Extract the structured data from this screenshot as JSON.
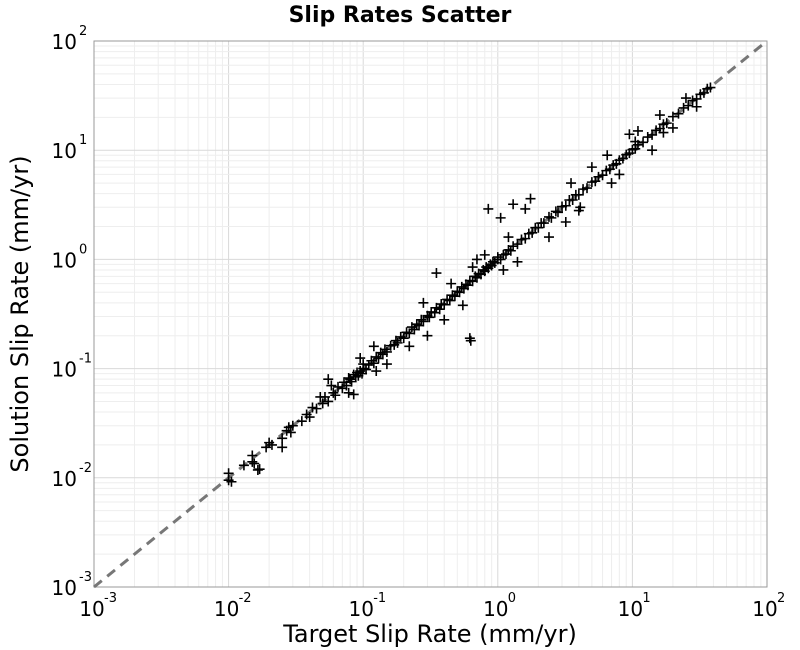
{
  "chart_data": {
    "type": "scatter",
    "title": "Slip Rates Scatter",
    "xlabel": "Target Slip Rate (mm/yr)",
    "ylabel": "Solution Slip Rate (mm/yr)",
    "xscale": "log",
    "yscale": "log",
    "xlim": [
      0.001,
      100
    ],
    "ylim": [
      0.001,
      100
    ],
    "xticks": [
      {
        "base": "10",
        "exp": "-3"
      },
      {
        "base": "10",
        "exp": "-2"
      },
      {
        "base": "10",
        "exp": "-1"
      },
      {
        "base": "10",
        "exp": "0"
      },
      {
        "base": "10",
        "exp": "1"
      },
      {
        "base": "10",
        "exp": "2"
      }
    ],
    "yticks": [
      {
        "base": "10",
        "exp": "-3"
      },
      {
        "base": "10",
        "exp": "-2"
      },
      {
        "base": "10",
        "exp": "-1"
      },
      {
        "base": "10",
        "exp": "0"
      },
      {
        "base": "10",
        "exp": "1"
      },
      {
        "base": "10",
        "exp": "2"
      }
    ],
    "grid": true,
    "marker": "plus",
    "marker_color": "#000000",
    "reference_line": {
      "style": "dashed",
      "color": "#777777",
      "from": [
        0.001,
        0.001
      ],
      "to": [
        100,
        100
      ]
    },
    "series": [
      {
        "points": [
          [
            0.01,
            0.0095
          ],
          [
            0.01,
            0.011
          ],
          [
            0.0105,
            0.0092
          ],
          [
            0.015,
            0.014
          ],
          [
            0.0155,
            0.0135
          ],
          [
            0.015,
            0.016
          ],
          [
            0.017,
            0.012
          ],
          [
            0.019,
            0.019
          ],
          [
            0.02,
            0.021
          ],
          [
            0.021,
            0.02
          ],
          [
            0.025,
            0.023
          ],
          [
            0.027,
            0.027
          ],
          [
            0.028,
            0.029
          ],
          [
            0.029,
            0.026
          ],
          [
            0.03,
            0.03
          ],
          [
            0.035,
            0.033
          ],
          [
            0.038,
            0.038
          ],
          [
            0.04,
            0.036
          ],
          [
            0.042,
            0.044
          ],
          [
            0.045,
            0.043
          ],
          [
            0.05,
            0.048
          ],
          [
            0.052,
            0.055
          ],
          [
            0.055,
            0.05
          ],
          [
            0.06,
            0.06
          ],
          [
            0.062,
            0.057
          ],
          [
            0.065,
            0.068
          ],
          [
            0.07,
            0.066
          ],
          [
            0.072,
            0.075
          ],
          [
            0.075,
            0.07
          ],
          [
            0.078,
            0.082
          ],
          [
            0.08,
            0.08
          ],
          [
            0.082,
            0.076
          ],
          [
            0.085,
            0.088
          ],
          [
            0.088,
            0.084
          ],
          [
            0.09,
            0.092
          ],
          [
            0.092,
            0.086
          ],
          [
            0.095,
            0.095
          ],
          [
            0.098,
            0.09
          ],
          [
            0.1,
            0.1
          ],
          [
            0.1,
            0.11
          ],
          [
            0.105,
            0.098
          ],
          [
            0.11,
            0.108
          ],
          [
            0.115,
            0.118
          ],
          [
            0.12,
            0.112
          ],
          [
            0.125,
            0.128
          ],
          [
            0.13,
            0.124
          ],
          [
            0.135,
            0.14
          ],
          [
            0.14,
            0.135
          ],
          [
            0.145,
            0.15
          ],
          [
            0.15,
            0.142
          ],
          [
            0.16,
            0.162
          ],
          [
            0.17,
            0.165
          ],
          [
            0.175,
            0.18
          ],
          [
            0.18,
            0.172
          ],
          [
            0.19,
            0.195
          ],
          [
            0.2,
            0.19
          ],
          [
            0.21,
            0.215
          ],
          [
            0.22,
            0.21
          ],
          [
            0.23,
            0.24
          ],
          [
            0.24,
            0.228
          ],
          [
            0.25,
            0.255
          ],
          [
            0.26,
            0.248
          ],
          [
            0.27,
            0.28
          ],
          [
            0.28,
            0.27
          ],
          [
            0.3,
            0.305
          ],
          [
            0.31,
            0.295
          ],
          [
            0.32,
            0.33
          ],
          [
            0.34,
            0.325
          ],
          [
            0.35,
            0.36
          ],
          [
            0.37,
            0.35
          ],
          [
            0.38,
            0.39
          ],
          [
            0.4,
            0.385
          ],
          [
            0.42,
            0.43
          ],
          [
            0.44,
            0.42
          ],
          [
            0.46,
            0.47
          ],
          [
            0.48,
            0.46
          ],
          [
            0.5,
            0.51
          ],
          [
            0.52,
            0.5
          ],
          [
            0.54,
            0.56
          ],
          [
            0.56,
            0.54
          ],
          [
            0.58,
            0.59
          ],
          [
            0.6,
            0.58
          ],
          [
            0.62,
            0.64
          ],
          [
            0.65,
            0.63
          ],
          [
            0.68,
            0.7
          ],
          [
            0.7,
            0.68
          ],
          [
            0.72,
            0.74
          ],
          [
            0.75,
            0.73
          ],
          [
            0.78,
            0.8
          ],
          [
            0.8,
            0.78
          ],
          [
            0.82,
            0.85
          ],
          [
            0.85,
            0.83
          ],
          [
            0.88,
            0.9
          ],
          [
            0.9,
            0.88
          ],
          [
            0.92,
            0.95
          ],
          [
            0.95,
            0.93
          ],
          [
            1.0,
            1.0
          ],
          [
            1.0,
            1.05
          ],
          [
            1.05,
            1.0
          ],
          [
            1.1,
            1.1
          ],
          [
            1.15,
            1.12
          ],
          [
            1.2,
            1.22
          ],
          [
            1.25,
            1.2
          ],
          [
            1.3,
            1.32
          ],
          [
            1.4,
            1.38
          ],
          [
            1.5,
            1.52
          ],
          [
            1.6,
            1.55
          ],
          [
            1.7,
            1.72
          ],
          [
            1.8,
            1.75
          ],
          [
            1.9,
            1.95
          ],
          [
            2.0,
            1.95
          ],
          [
            2.1,
            2.15
          ],
          [
            2.2,
            2.15
          ],
          [
            2.4,
            2.45
          ],
          [
            2.5,
            2.4
          ],
          [
            2.7,
            2.75
          ],
          [
            2.8,
            2.7
          ],
          [
            3.0,
            3.05
          ],
          [
            3.2,
            3.1
          ],
          [
            3.4,
            3.5
          ],
          [
            3.6,
            3.5
          ],
          [
            3.8,
            3.9
          ],
          [
            4.0,
            3.9
          ],
          [
            4.3,
            4.4
          ],
          [
            4.6,
            4.5
          ],
          [
            5.0,
            5.1
          ],
          [
            5.3,
            5.2
          ],
          [
            5.6,
            5.7
          ],
          [
            6.0,
            5.9
          ],
          [
            6.4,
            6.5
          ],
          [
            6.8,
            6.7
          ],
          [
            7.2,
            7.3
          ],
          [
            7.6,
            7.5
          ],
          [
            8.0,
            8.1
          ],
          [
            8.5,
            8.4
          ],
          [
            9.0,
            9.1
          ],
          [
            9.5,
            9.4
          ],
          [
            10.0,
            10.1
          ],
          [
            10.5,
            10.3
          ],
          [
            11.0,
            11.2
          ],
          [
            12.0,
            11.8
          ],
          [
            13.0,
            13.2
          ],
          [
            14.0,
            13.8
          ],
          [
            15.0,
            15.2
          ],
          [
            16.0,
            15.8
          ],
          [
            17.0,
            17.3
          ],
          [
            18.0,
            17.7
          ],
          [
            20.0,
            20.3
          ],
          [
            22.0,
            21.6
          ],
          [
            24.0,
            24.4
          ],
          [
            26.0,
            25.6
          ],
          [
            28.0,
            28.5
          ],
          [
            30.0,
            29.5
          ],
          [
            32.0,
            32.5
          ],
          [
            34.0,
            33.5
          ],
          [
            36.0,
            36.5
          ],
          [
            38.0,
            37.5
          ],
          [
            0.0165,
            0.0118
          ],
          [
            0.048,
            0.055
          ],
          [
            0.085,
            0.058
          ],
          [
            0.055,
            0.08
          ],
          [
            0.12,
            0.16
          ],
          [
            0.15,
            0.11
          ],
          [
            0.22,
            0.16
          ],
          [
            0.3,
            0.2
          ],
          [
            0.28,
            0.4
          ],
          [
            0.4,
            0.28
          ],
          [
            0.45,
            0.6
          ],
          [
            0.55,
            0.38
          ],
          [
            0.63,
            0.18
          ],
          [
            0.62,
            0.19
          ],
          [
            0.35,
            0.75
          ],
          [
            0.7,
            1.0
          ],
          [
            0.65,
            0.85
          ],
          [
            0.8,
            1.1
          ],
          [
            1.1,
            0.8
          ],
          [
            1.4,
            0.95
          ],
          [
            1.2,
            1.6
          ],
          [
            0.85,
            2.9
          ],
          [
            1.05,
            2.4
          ],
          [
            1.3,
            3.2
          ],
          [
            1.75,
            3.6
          ],
          [
            1.6,
            2.9
          ],
          [
            2.4,
            1.6
          ],
          [
            3.2,
            2.2
          ],
          [
            3.5,
            5.0
          ],
          [
            4.0,
            2.8
          ],
          [
            4.1,
            3.0
          ],
          [
            5.0,
            7.0
          ],
          [
            7.0,
            5.0
          ],
          [
            6.5,
            9.0
          ],
          [
            8.0,
            6.0
          ],
          [
            9.5,
            14.0
          ],
          [
            10.5,
            12.0
          ],
          [
            11.0,
            15.0
          ],
          [
            14.0,
            10.0
          ],
          [
            16.0,
            21.0
          ],
          [
            17.0,
            14.5
          ],
          [
            20.0,
            16.0
          ],
          [
            25.0,
            30.0
          ],
          [
            30.0,
            25.0
          ],
          [
            0.058,
            0.07
          ],
          [
            0.078,
            0.06
          ],
          [
            0.125,
            0.095
          ],
          [
            0.095,
            0.125
          ],
          [
            0.025,
            0.019
          ],
          [
            0.013,
            0.013
          ]
        ]
      }
    ]
  }
}
